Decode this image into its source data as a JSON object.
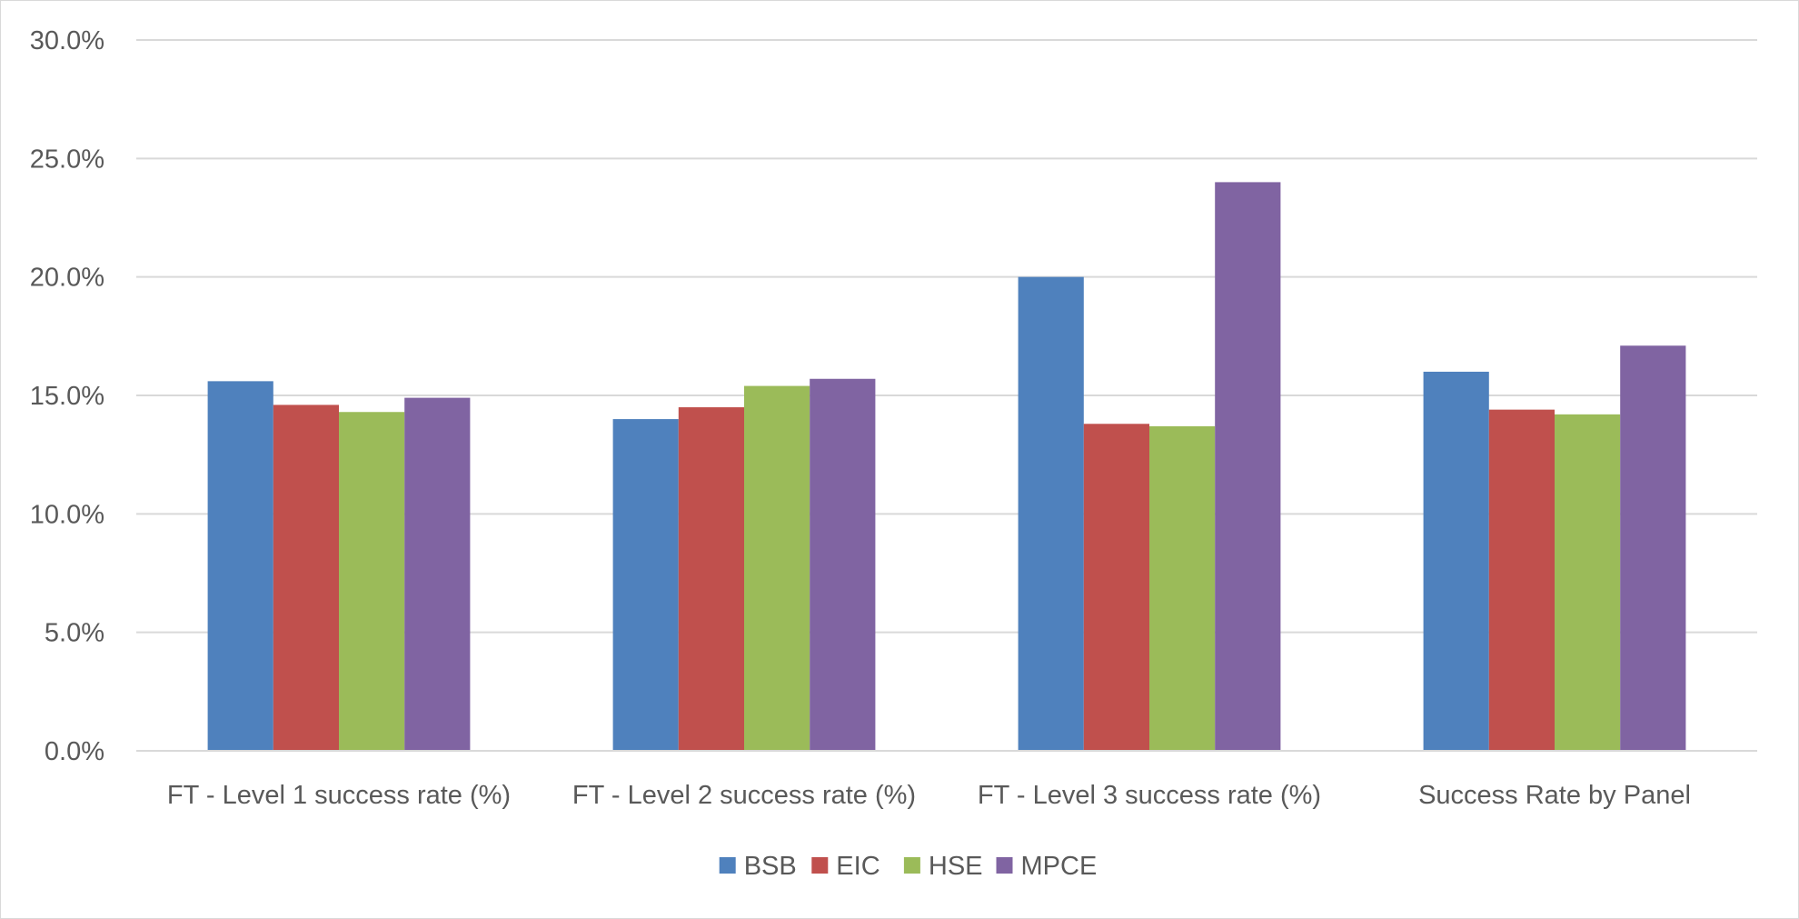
{
  "chart_data": {
    "type": "bar",
    "categories": [
      "FT - Level 1 success rate (%)",
      "FT - Level 2 success rate (%)",
      "FT - Level 3 success rate (%)",
      "Success Rate by Panel"
    ],
    "series": [
      {
        "name": "BSB",
        "color": "#4f81bd",
        "values": [
          15.6,
          14.0,
          20.0,
          16.0
        ]
      },
      {
        "name": "EIC",
        "color": "#c0504d",
        "values": [
          14.6,
          14.5,
          13.8,
          14.4
        ]
      },
      {
        "name": "HSE",
        "color": "#9bbb59",
        "values": [
          14.3,
          15.4,
          13.7,
          14.2
        ]
      },
      {
        "name": "MPCE",
        "color": "#8064a2",
        "values": [
          14.9,
          15.7,
          24.0,
          17.1
        ]
      }
    ],
    "yticks": [
      "0.0%",
      "5.0%",
      "10.0%",
      "15.0%",
      "20.0%",
      "25.0%",
      "30.0%"
    ],
    "ytick_values": [
      0,
      5,
      10,
      15,
      20,
      25,
      30
    ],
    "ylim": [
      0,
      30
    ],
    "title": "",
    "xlabel": "",
    "ylabel": "",
    "grid": true,
    "legend_position": "bottom-center",
    "gridline_color": "#d9d9d9",
    "text_color": "#595959"
  }
}
